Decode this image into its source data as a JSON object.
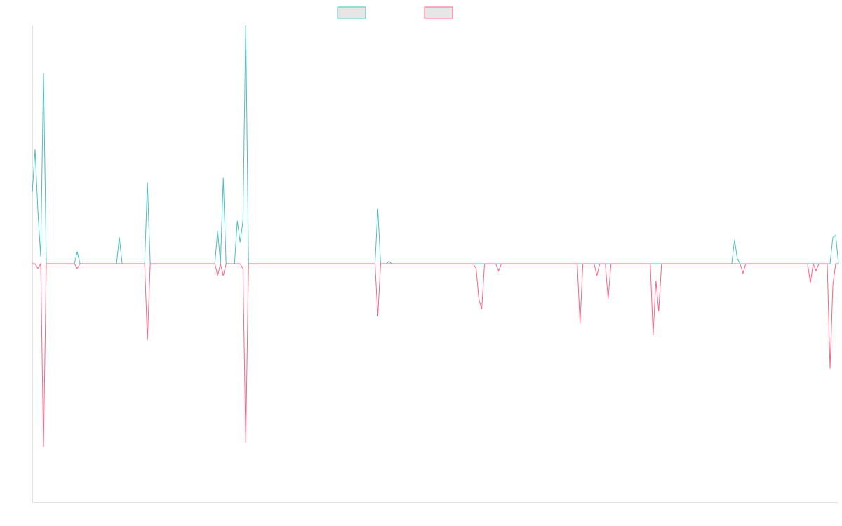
{
  "chart_data": {
    "type": "line",
    "title": "",
    "xlabel": "",
    "ylabel": "",
    "grid": false,
    "legend_placement": "top-center",
    "x_count": 288,
    "ylim": [
      -1.0,
      1.0
    ],
    "series": [
      {
        "color": "#4bc0c0",
        "fill": "#e6e6e6",
        "points": [
          [
            0,
            0.3
          ],
          [
            1,
            0.48
          ],
          [
            2,
            0.22
          ],
          [
            3,
            0.03
          ],
          [
            4,
            0.8
          ],
          [
            5,
            0
          ],
          [
            15,
            0
          ],
          [
            16,
            0.05
          ],
          [
            17,
            0
          ],
          [
            30,
            0
          ],
          [
            31,
            0.11
          ],
          [
            32,
            0
          ],
          [
            40,
            0
          ],
          [
            41,
            0.34
          ],
          [
            42,
            0
          ],
          [
            65,
            0
          ],
          [
            66,
            0.14
          ],
          [
            67,
            0
          ],
          [
            68,
            0.36
          ],
          [
            69,
            0
          ],
          [
            72,
            0
          ],
          [
            73,
            0.18
          ],
          [
            74,
            0.09
          ],
          [
            75,
            0.18
          ],
          [
            76,
            1.0
          ],
          [
            77,
            0
          ],
          [
            122,
            0
          ],
          [
            123,
            0.23
          ],
          [
            124,
            0
          ],
          [
            126,
            0
          ],
          [
            127,
            0.01
          ],
          [
            128,
            0
          ],
          [
            249,
            0
          ],
          [
            250,
            0.1
          ],
          [
            251,
            0.02
          ],
          [
            252,
            0
          ],
          [
            284,
            0
          ],
          [
            285,
            0.11
          ],
          [
            286,
            0.12
          ],
          [
            287,
            0
          ]
        ]
      },
      {
        "color": "#ff6384",
        "fill": "#e6e6e6",
        "points": [
          [
            0,
            0
          ],
          [
            1,
            0
          ],
          [
            2,
            -0.02
          ],
          [
            3,
            0
          ],
          [
            4,
            -0.77
          ],
          [
            5,
            0
          ],
          [
            15,
            0
          ],
          [
            16,
            -0.02
          ],
          [
            17,
            0
          ],
          [
            40,
            0
          ],
          [
            41,
            -0.32
          ],
          [
            42,
            0
          ],
          [
            65,
            0
          ],
          [
            66,
            -0.05
          ],
          [
            67,
            0
          ],
          [
            68,
            -0.05
          ],
          [
            69,
            0
          ],
          [
            73,
            0
          ],
          [
            75,
            -0.02
          ],
          [
            76,
            -0.75
          ],
          [
            77,
            0
          ],
          [
            122,
            0
          ],
          [
            123,
            -0.22
          ],
          [
            124,
            0
          ],
          [
            157,
            0
          ],
          [
            158,
            -0.02
          ],
          [
            159,
            -0.15
          ],
          [
            160,
            -0.19
          ],
          [
            161,
            0
          ],
          [
            165,
            0
          ],
          [
            166,
            -0.03
          ],
          [
            167,
            0
          ],
          [
            194,
            0
          ],
          [
            195,
            -0.25
          ],
          [
            196,
            0
          ],
          [
            200,
            0
          ],
          [
            201,
            -0.05
          ],
          [
            202,
            0
          ],
          [
            204,
            0
          ],
          [
            205,
            -0.15
          ],
          [
            206,
            0
          ],
          [
            220,
            0
          ],
          [
            221,
            -0.3
          ],
          [
            222,
            -0.07
          ],
          [
            223,
            -0.2
          ],
          [
            224,
            0
          ],
          [
            252,
            0
          ],
          [
            253,
            -0.04
          ],
          [
            254,
            0
          ],
          [
            276,
            0
          ],
          [
            277,
            -0.08
          ],
          [
            278,
            0
          ],
          [
            279,
            -0.03
          ],
          [
            280,
            0
          ],
          [
            283,
            0
          ],
          [
            284,
            -0.44
          ],
          [
            285,
            -0.09
          ],
          [
            286,
            0
          ]
        ]
      }
    ]
  }
}
